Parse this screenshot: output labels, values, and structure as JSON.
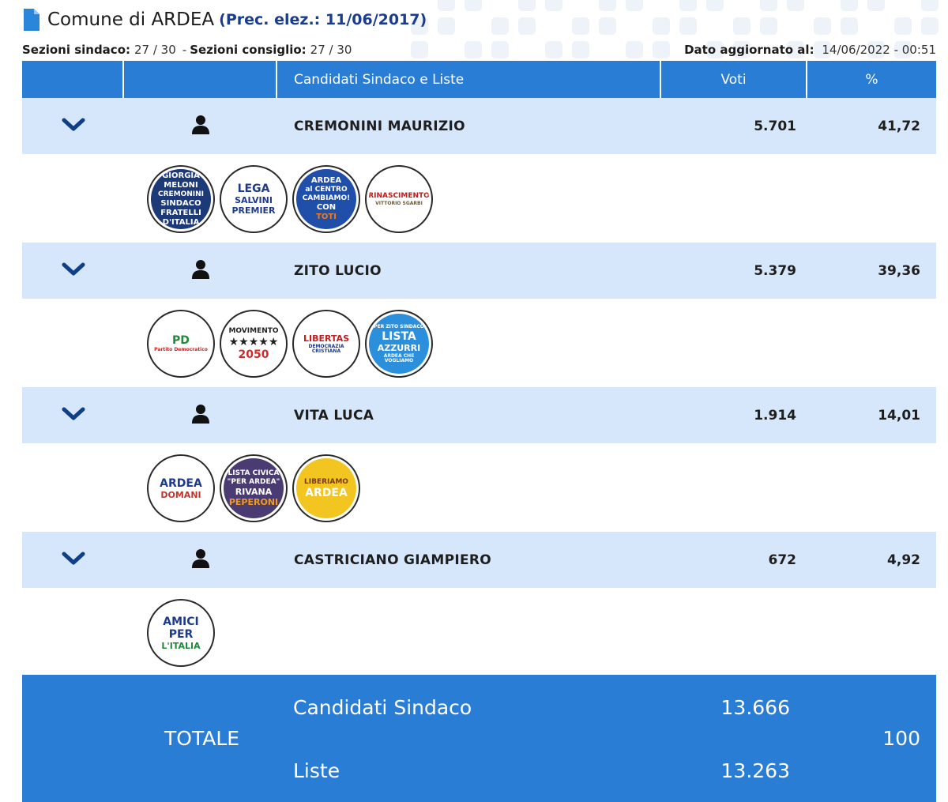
{
  "header": {
    "title": "Comune di ARDEA",
    "prec": "(Prec. elez.: 11/06/2017)"
  },
  "subbar": {
    "sindaco_label": "Sezioni sindaco:",
    "sindaco_value": "27 / 30",
    "separator": "-",
    "consiglio_label": "Sezioni consiglio:",
    "consiglio_value": "27 / 30",
    "updated_label": "Dato aggiornato al:",
    "updated_value": "14/06/2022 - 00:51"
  },
  "table": {
    "headers": {
      "candidates": "Candidati Sindaco e Liste",
      "votes": "Voti",
      "percent": "%"
    },
    "candidates": [
      {
        "name": "CREMONINI MAURIZIO",
        "votes": "5.701",
        "percent": "41,72",
        "lists": [
          {
            "icon": "fratelli-italia-logo",
            "lines": [
              "GIORGIA",
              "MELONI",
              "CREMONINI",
              "SINDACO",
              "FRATELLI",
              "D'ITALIA"
            ]
          },
          {
            "icon": "lega-logo",
            "lines": [
              "LEGA",
              "SALVINI",
              "PREMIER"
            ]
          },
          {
            "icon": "cambiamo-logo",
            "lines": [
              "ARDEA",
              "al CENTRO",
              "CAMBIAMO!",
              "CON",
              "TOTI"
            ]
          },
          {
            "icon": "rinascimento-logo",
            "lines": [
              "RINASCIMENTO",
              "VITTORIO SGARBI"
            ]
          }
        ]
      },
      {
        "name": "ZITO LUCIO",
        "votes": "5.379",
        "percent": "39,36",
        "lists": [
          {
            "icon": "partito-democratico-logo",
            "lines": [
              "PD",
              "Partito Democratico"
            ]
          },
          {
            "icon": "movimento-2050-logo",
            "lines": [
              "MOVIMENTO",
              "★★★★★",
              "2050"
            ]
          },
          {
            "icon": "democrazia-cristiana-logo",
            "lines": [
              "LIBERTAS",
              "DEMOCRAZIA CRISTIANA"
            ]
          },
          {
            "icon": "lista-azzurri-logo",
            "lines": [
              "PER ZITO SINDACO",
              "LISTA",
              "AZZURRI",
              "ARDEA CHE VOGLIAMO"
            ]
          }
        ]
      },
      {
        "name": "VITA LUCA",
        "votes": "1.914",
        "percent": "14,01",
        "lists": [
          {
            "icon": "ardea-domani-logo",
            "lines": [
              "ARDEA",
              "DOMANI"
            ]
          },
          {
            "icon": "per-ardea-logo",
            "lines": [
              "LISTA CIVICA",
              "\"PER ARDEA\"",
              "RIVANA",
              "PEPERONI"
            ]
          },
          {
            "icon": "liberiamo-ardea-logo",
            "lines": [
              "LIBERIAMO",
              "ARDEA"
            ]
          }
        ]
      },
      {
        "name": "CASTRICIANO GIAMPIERO",
        "votes": "672",
        "percent": "4,92",
        "lists": [
          {
            "icon": "amici-per-italia-logo",
            "lines": [
              "AMICI",
              "PER",
              "L'ITALIA"
            ]
          }
        ]
      }
    ]
  },
  "total": {
    "label": "TOTALE",
    "candidates_label": "Candidati Sindaco",
    "candidates_value": "13.666",
    "lists_label": "Liste",
    "lists_value": "13.263",
    "percent": "100"
  },
  "colors": {
    "header_blue": "#2a7dd4",
    "row_light_blue": "#d6e7fb",
    "chevron": "#0f3f87",
    "prec_blue": "#1a3d8f"
  }
}
